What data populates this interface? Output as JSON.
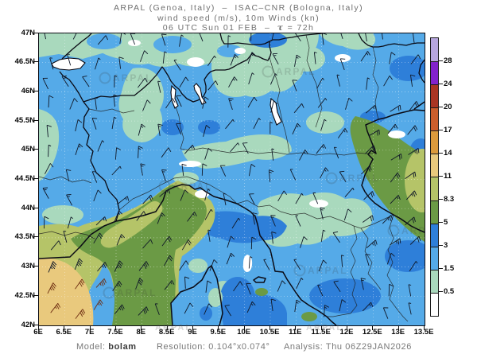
{
  "title": {
    "line1": "ARPAL (Genoa, Italy)  –  ISAC–CNR (Bologna, Italy)",
    "line2": "wind speed (m/s), 10m Winds (kn)",
    "line3_prefix": "06 UTC Sun 01 FEB  –  ",
    "tau": "τ",
    "line3_suffix": " = 72h"
  },
  "map": {
    "lat_labels": [
      "47N",
      "46.5N",
      "46N",
      "45.5N",
      "45N",
      "44.5N",
      "44N",
      "43.5N",
      "43N",
      "42.5N",
      "42N"
    ],
    "lon_labels": [
      "6E",
      "6.5E",
      "7E",
      "7.5E",
      "8E",
      "8.5E",
      "9E",
      "9.5E",
      "10E",
      "10.5E",
      "11E",
      "11.5E",
      "12E",
      "12.5E",
      "13E",
      "13.5E"
    ],
    "watermark": "ARPAL"
  },
  "colorbar": {
    "tick_labels": [
      "28",
      "24",
      "20",
      "17",
      "14",
      "11",
      "8.3",
      "5",
      "3",
      "1.5",
      "0.5"
    ],
    "segment_colors_top_to_bottom": [
      "#b7a6de",
      "#8222cc",
      "#a93523",
      "#cb5e2c",
      "#dc9a3c",
      "#e9c97d",
      "#b5c468",
      "#6b9a45",
      "#2e7fd9",
      "#55aae8",
      "#a9d9bd",
      "#ffffff"
    ]
  },
  "legend_values_m_s": [
    28,
    24,
    20,
    17,
    14,
    11,
    8.3,
    5,
    3,
    1.5,
    0.5
  ],
  "footer": {
    "model_label": "Model:",
    "model_value": "bolam",
    "resolution_label": "Resolution:",
    "resolution_value": "0.104°x0.074°",
    "analysis_label": "Analysis:",
    "analysis_value": "Thu 06Z29JAN2026"
  }
}
